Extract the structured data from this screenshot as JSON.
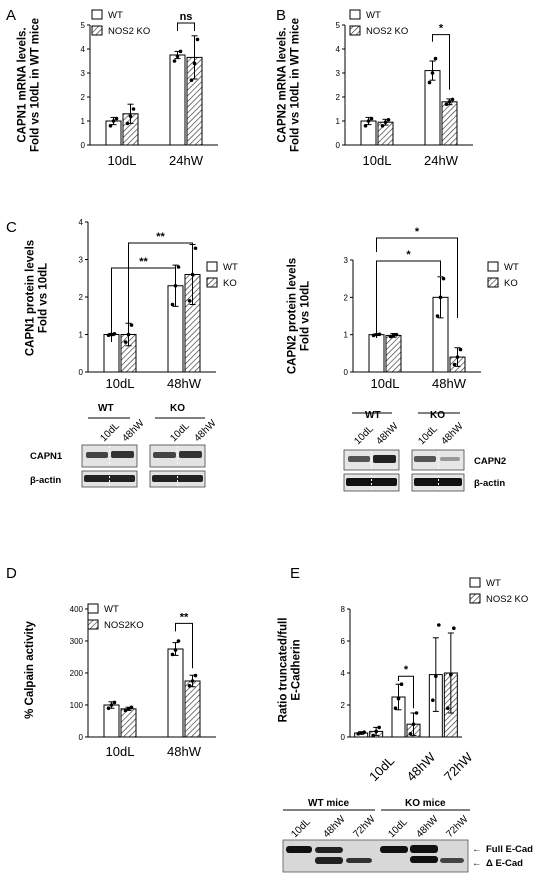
{
  "chart_data": [
    {
      "panel": "A",
      "type": "bar",
      "ylabel": "CAPN1 mRNA levels.\nFold vs 10dL in WT mice",
      "categories": [
        "10dL",
        "24hW"
      ],
      "ylim": [
        0,
        5
      ],
      "yticks": [
        0,
        1,
        2,
        3,
        4,
        5
      ],
      "series": [
        {
          "name": "WT",
          "values": [
            1.0,
            3.75
          ],
          "err": [
            0.15,
            0.15
          ],
          "points": [
            [
              0.8,
              1.0,
              1.1
            ],
            [
              3.5,
              3.7,
              3.9
            ]
          ]
        },
        {
          "name": "NOS2 KO",
          "values": [
            1.3,
            3.65
          ],
          "err": [
            0.4,
            0.9
          ],
          "points": [
            [
              0.9,
              1.2,
              1.5
            ],
            [
              2.7,
              3.4,
              4.4
            ]
          ]
        }
      ],
      "significance": [
        {
          "label": "ns",
          "groups": "24hW"
        }
      ],
      "legend": "top-right"
    },
    {
      "panel": "B",
      "type": "bar",
      "ylabel": "CAPN2 mRNA levels.\nFold vs 10dL in WT mice",
      "categories": [
        "10dL",
        "24hW"
      ],
      "ylim": [
        0,
        5
      ],
      "yticks": [
        0,
        1,
        2,
        3,
        4,
        5
      ],
      "series": [
        {
          "name": "WT",
          "values": [
            1.0,
            3.1
          ],
          "err": [
            0.15,
            0.4
          ],
          "points": [
            [
              0.8,
              1.0,
              1.1
            ],
            [
              2.6,
              3.0,
              3.6
            ]
          ]
        },
        {
          "name": "NOS2 KO",
          "values": [
            0.95,
            1.8
          ],
          "err": [
            0.12,
            0.12
          ],
          "points": [
            [
              0.8,
              0.95,
              1.05
            ],
            [
              1.7,
              1.8,
              1.9
            ]
          ]
        }
      ],
      "significance": [
        {
          "label": "*",
          "groups": "24hW"
        }
      ],
      "legend": "top-right"
    },
    {
      "panel": "C",
      "type": "bar",
      "ylabel": "CAPN1 protein levels\nFold vs 10dL",
      "categories": [
        "10dL",
        "48hW"
      ],
      "ylim": [
        0,
        4
      ],
      "yticks": [
        0,
        1,
        2,
        3,
        4
      ],
      "series": [
        {
          "name": "WT",
          "values": [
            1.0,
            2.3
          ],
          "err": [
            0.03,
            0.55
          ],
          "points": [
            [
              0.98,
              1.0,
              1.02
            ],
            [
              1.8,
              2.3,
              2.8
            ]
          ]
        },
        {
          "name": "KO",
          "values": [
            1.0,
            2.6
          ],
          "err": [
            0.3,
            0.8
          ],
          "points": [
            [
              0.8,
              1.0,
              1.25
            ],
            [
              1.9,
              2.6,
              3.3
            ]
          ]
        }
      ],
      "significance": [
        {
          "label": "**",
          "groups": "WT 10dL vs WT 48hW"
        },
        {
          "label": "**",
          "groups": "KO 10dL vs KO 48hW"
        }
      ],
      "legend": "top-right",
      "blot": {
        "groups": [
          "WT",
          "KO"
        ],
        "lanes": [
          "10dL",
          "48hW",
          "10dL",
          "48hW"
        ],
        "rows": [
          "CAPN1",
          "β-actin"
        ]
      }
    },
    {
      "panel": "C2",
      "type": "bar",
      "ylabel": "CAPN2 protein levels\nFold vs 10dL",
      "categories": [
        "10dL",
        "48hW"
      ],
      "ylim": [
        0,
        3
      ],
      "yticks": [
        0,
        1,
        2,
        3
      ],
      "series": [
        {
          "name": "WT",
          "values": [
            1.0,
            2.0
          ],
          "err": [
            0.02,
            0.55
          ],
          "points": [
            [
              0.98,
              1.0,
              1.01
            ],
            [
              1.5,
              2.0,
              2.5
            ]
          ]
        },
        {
          "name": "KO",
          "values": [
            0.98,
            0.4
          ],
          "err": [
            0.05,
            0.25
          ],
          "points": [
            [
              0.95,
              0.98,
              1.0
            ],
            [
              0.2,
              0.4,
              0.6
            ]
          ]
        }
      ],
      "significance": [
        {
          "label": "*",
          "groups": "WT 10dL vs WT 48hW"
        },
        {
          "label": "*",
          "groups": "WT 10dL vs KO 48hW"
        }
      ],
      "legend": "top-right",
      "blot": {
        "groups": [
          "WT",
          "KO"
        ],
        "lanes": [
          "10dL",
          "48hW",
          "10dL",
          "48hW"
        ],
        "rows": [
          "CAPN2",
          "β-actin"
        ]
      }
    },
    {
      "panel": "D",
      "type": "bar",
      "ylabel": "% Calpain activity",
      "categories": [
        "10dL",
        "48hW"
      ],
      "ylim": [
        0,
        400
      ],
      "yticks": [
        0,
        100,
        200,
        300,
        400
      ],
      "series": [
        {
          "name": "WT",
          "values": [
            100,
            275
          ],
          "err": [
            10,
            20
          ],
          "points": [
            [
              90,
              100,
              108
            ],
            [
              258,
              272,
              300
            ]
          ]
        },
        {
          "name": "NOS2KO",
          "values": [
            88,
            175
          ],
          "err": [
            5,
            18
          ],
          "points": [
            [
              83,
              88,
              93
            ],
            [
              160,
              175,
              192
            ]
          ]
        }
      ],
      "significance": [
        {
          "label": "**",
          "groups": "48hW"
        }
      ],
      "legend": "top-right"
    },
    {
      "panel": "E",
      "type": "bar",
      "ylabel": "Ratio truncated/full\nE-Cadherin",
      "categories": [
        "10dL",
        "48hW",
        "72hW"
      ],
      "ylim": [
        0,
        8
      ],
      "yticks": [
        0,
        2,
        4,
        6,
        8
      ],
      "series": [
        {
          "name": "WT",
          "values": [
            0.25,
            2.5,
            3.9
          ],
          "err": [
            0.08,
            0.8,
            2.3
          ],
          "points": [
            [
              0.2,
              0.25,
              0.3
            ],
            [
              1.8,
              2.4,
              3.3
            ],
            [
              2.3,
              3.8,
              7.0
            ]
          ]
        },
        {
          "name": "NOS2 KO",
          "values": [
            0.35,
            0.8,
            4.0
          ],
          "err": [
            0.25,
            0.7,
            2.5
          ],
          "points": [
            [
              0.1,
              0.35,
              0.6
            ],
            [
              0.2,
              0.8,
              1.5
            ],
            [
              1.8,
              3.9,
              6.8
            ]
          ]
        }
      ],
      "significance": [
        {
          "label": "*",
          "groups": "48hW"
        }
      ],
      "legend": "top-right",
      "blot": {
        "groups": [
          "WT mice",
          "KO mice"
        ],
        "lanes": [
          "10dL",
          "48hW",
          "72hW",
          "10dL",
          "48hW",
          "72hW"
        ],
        "rows": [
          "Full E-Cad",
          "Δ E-Cad"
        ]
      }
    }
  ],
  "letters": [
    "A",
    "B",
    "C",
    "D",
    "E"
  ],
  "blot_labels": {
    "c1_row1": "CAPN1",
    "c_actin": "β-actin",
    "c2_row1": "CAPN2",
    "e_full": "Full E-Cad",
    "e_delta": "Δ E-Cad"
  }
}
